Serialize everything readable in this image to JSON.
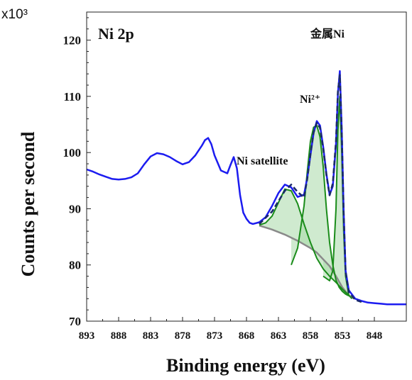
{
  "chart_data": {
    "type": "line",
    "title": "",
    "panel_label": "Ni 2p",
    "multiplier_label": "x10³",
    "xlabel": "Binding energy (eV)",
    "ylabel": "Counts per second",
    "x_reversed": true,
    "xlim": [
      893,
      843
    ],
    "ylim": [
      70,
      125
    ],
    "xticks": [
      893,
      888,
      883,
      878,
      873,
      868,
      863,
      858,
      853,
      848
    ],
    "yticks": [
      70,
      80,
      90,
      100,
      110,
      120
    ],
    "grid": false,
    "annotations": [
      "Ni satellite",
      "Ni²⁺",
      "金属Ni"
    ],
    "colors": {
      "raw": "#1c1cf0",
      "fit": "#1a2a6a",
      "component": "#1a8c1a",
      "fill": "#a8d8a8",
      "background": "#8a8a8a"
    },
    "series": [
      {
        "style": "raw",
        "x": [
          893,
          892,
          891,
          890,
          889,
          888,
          887,
          886,
          885,
          884,
          883,
          882,
          881,
          880,
          879,
          878,
          877.5,
          877,
          876,
          875,
          874.5,
          874,
          873.5,
          873,
          872,
          871,
          870.5,
          870,
          869.5,
          869,
          868.5,
          868,
          867.5,
          867,
          866,
          865,
          864,
          863,
          862,
          861,
          860,
          859,
          858.5,
          858,
          857.5,
          857,
          856.5,
          856,
          855.5,
          855,
          854.5,
          854,
          853.7,
          853.4,
          853.1,
          852.8,
          852.5,
          852,
          851,
          850,
          849,
          848,
          847,
          846,
          845,
          844,
          843
        ],
        "y": [
          97.0,
          96.6,
          96.1,
          95.7,
          95.3,
          95.2,
          95.3,
          95.6,
          96.3,
          97.9,
          99.3,
          99.9,
          99.7,
          99.2,
          98.5,
          97.9,
          98.1,
          98.3,
          99.5,
          101.2,
          102.2,
          102.6,
          101.5,
          99.5,
          96.8,
          96.3,
          97.8,
          99.2,
          97.2,
          92.4,
          89.3,
          88.2,
          87.5,
          87.3,
          87.6,
          88.5,
          90.5,
          92.8,
          94.3,
          93.8,
          92.1,
          92.5,
          95.5,
          99.5,
          103.5,
          105.6,
          104.8,
          101.0,
          96.2,
          92.5,
          94.0,
          101.5,
          110.5,
          114.5,
          104.0,
          89.5,
          79.0,
          75.5,
          74.0,
          73.6,
          73.3,
          73.2,
          73.1,
          73.0,
          73.0,
          73.0,
          73.0
        ]
      },
      {
        "style": "fit",
        "x": [
          866,
          864,
          862,
          861,
          860,
          859,
          858.5,
          858,
          857.5,
          857,
          856.5,
          856,
          855.5,
          855,
          854.5,
          854,
          853.7,
          853.4,
          853.1,
          852.8,
          852.5,
          852,
          851,
          850
        ],
        "y": [
          87.3,
          89.5,
          93.2,
          94.3,
          93.0,
          92.0,
          95.3,
          99.7,
          103.6,
          105.3,
          104.4,
          100.8,
          96.0,
          92.4,
          94.5,
          102.0,
          110.8,
          113.8,
          103.5,
          89.0,
          78.7,
          75.2,
          73.8,
          73.4
        ]
      },
      {
        "style": "component",
        "x": [
          866,
          865,
          864,
          863,
          862,
          861,
          860,
          859,
          858,
          857,
          856,
          855,
          854,
          853,
          852
        ],
        "y": [
          87.1,
          87.5,
          88.7,
          91.1,
          93.5,
          93.2,
          90.9,
          87.3,
          84.0,
          81.2,
          79.3,
          78.0,
          76.9,
          75.7,
          74.6
        ]
      },
      {
        "style": "component",
        "x": [
          861,
          860,
          859,
          858.5,
          858,
          857.5,
          857,
          856.5,
          856,
          855.5,
          855,
          854.5,
          854,
          853.5,
          853,
          852.5,
          852
        ],
        "y": [
          80.0,
          83.0,
          90.5,
          96.5,
          102.0,
          104.5,
          104.8,
          102.8,
          97.5,
          90.0,
          84.0,
          80.0,
          77.3,
          76.0,
          75.3,
          74.8,
          74.5
        ]
      },
      {
        "style": "component",
        "x": [
          856,
          855,
          854.5,
          854,
          853.7,
          853.4,
          853.1,
          852.8,
          852.5,
          852,
          851.5
        ],
        "y": [
          78.0,
          77.2,
          79.0,
          90.0,
          104.0,
          110.0,
          100.0,
          86.0,
          78.0,
          74.6,
          74.0
        ]
      },
      {
        "style": "background",
        "x": [
          866,
          864,
          862,
          860,
          858,
          857,
          856,
          855,
          854,
          853,
          852,
          851.5,
          851
        ],
        "y": [
          87.0,
          86.3,
          85.4,
          84.3,
          83.0,
          82.2,
          81.0,
          79.8,
          78.0,
          76.0,
          74.6,
          74.2,
          74.0
        ]
      }
    ]
  }
}
